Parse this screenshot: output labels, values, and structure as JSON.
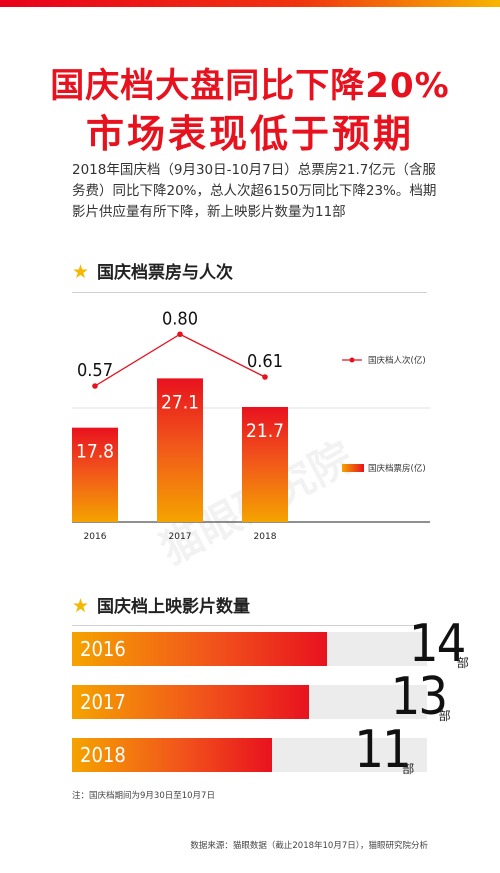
{
  "headline": {
    "line1": "国庆档大盘同比下降20%",
    "line2": "市场表现低于预期"
  },
  "intro": "2018年国庆档（9月30日-10月7日）总票房21.7亿元（含服务费）同比下降20%，总人次超6150万同比下降23%。档期影片供应量有所下降，新上映影片数量为11部",
  "watermark": "猫眼研究院",
  "chart_data": [
    {
      "type": "bar",
      "title": "国庆档票房与人次",
      "categories": [
        "2016",
        "2017",
        "2018"
      ],
      "series": [
        {
          "name": "国庆档票房(亿)",
          "type": "bar",
          "values": [
            17.8,
            27.1,
            21.7
          ],
          "color": "#e8121e"
        },
        {
          "name": "国庆档人次(亿)",
          "type": "line",
          "values": [
            0.57,
            0.8,
            0.61
          ],
          "color": "#e8121e"
        }
      ],
      "legend": "right",
      "grid": true
    },
    {
      "type": "bar",
      "orientation": "horizontal",
      "title": "国庆档上映影片数量",
      "categories": [
        "2016",
        "2017",
        "2018"
      ],
      "values": [
        14,
        13,
        11
      ],
      "unit": "部"
    }
  ],
  "note": "注：国庆档期间为9月30日至10月7日",
  "source": "数据来源：猫眼数据（截止2018年10月7日），猫眼研究院分析",
  "colors": {
    "accent": "#e8121e",
    "star": "#f5b700",
    "gradient_start": "#f5a300"
  }
}
